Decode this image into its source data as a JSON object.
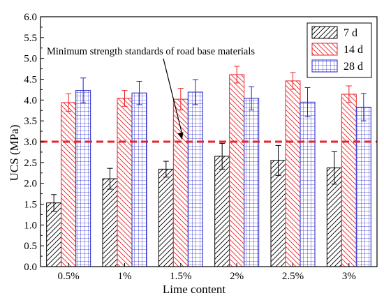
{
  "chart_data": {
    "type": "bar",
    "xlabel": "Lime content",
    "ylabel": "UCS (MPa)",
    "ylim": [
      0,
      6
    ],
    "yticks": [
      "0.0",
      "0.5",
      "1.0",
      "1.5",
      "2.0",
      "2.5",
      "3.0",
      "3.5",
      "4.0",
      "4.5",
      "5.0",
      "5.5",
      "6.0"
    ],
    "categories": [
      "0.5%",
      "1%",
      "1.5%",
      "2%",
      "2.5%",
      "3%"
    ],
    "series": [
      {
        "name": "7 d",
        "color": "#000000",
        "pattern": "diagonal-hatch",
        "values": [
          1.53,
          2.11,
          2.34,
          2.65,
          2.55,
          2.37
        ],
        "errors": [
          0.2,
          0.25,
          0.19,
          0.31,
          0.36,
          0.39
        ]
      },
      {
        "name": "14 d",
        "color": "#e8242a",
        "pattern": "reverse-diagonal-hatch",
        "values": [
          3.94,
          4.04,
          4.02,
          4.61,
          4.46,
          4.14
        ],
        "errors": [
          0.21,
          0.19,
          0.26,
          0.2,
          0.2,
          0.2
        ]
      },
      {
        "name": "28 d",
        "color": "#2222cc",
        "pattern": "grid",
        "values": [
          4.23,
          4.17,
          4.19,
          4.04,
          3.95,
          3.83
        ],
        "errors": [
          0.3,
          0.28,
          0.3,
          0.28,
          0.35,
          0.33
        ]
      }
    ],
    "reference_line": {
      "y": 3.0,
      "color": "#e8242a",
      "style": "dashed"
    },
    "annotation": {
      "text": "Minimum strength standards of road base materials",
      "points_to": {
        "category": "1.5%",
        "y": 3.0
      }
    },
    "legend": "top-right",
    "grid": false
  }
}
